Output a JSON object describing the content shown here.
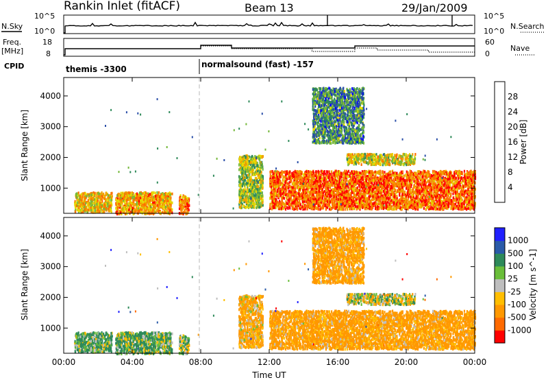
{
  "header": {
    "title": "Rankin Inlet (fitACF)",
    "beam": "Beam 13",
    "date": "29/Jan/2009"
  },
  "top_panels": {
    "nsky_label": "N.Sky",
    "nsearch_label": "N.Search",
    "nsky_ticks": [
      "10^5",
      "10^0"
    ],
    "nsearch_ticks": [
      "10^5",
      "10^0"
    ],
    "freq_label_1": "Freq.",
    "freq_label_2": "[MHz]",
    "freq_ticks": [
      "18",
      "8"
    ],
    "nave_label": "Nave",
    "nave_ticks": [
      "60",
      "0"
    ],
    "cpid_label": "CPID",
    "cpid_1": "themis -3300",
    "cpid_2": "normalsound (fast) -157"
  },
  "colors": {
    "power_scale": [
      "#0000ff",
      "#2a4ea8",
      "#2f8a5a",
      "#74b83a",
      "#e6d900",
      "#f0a000",
      "#ff7000",
      "#ff0000"
    ],
    "velocity_scale": [
      "#ff0000",
      "#ff6a00",
      "#ff9800",
      "#ffbe00",
      "#bebebe",
      "#6abe3a",
      "#2e8a5a",
      "#2a5aa8",
      "#2020ff"
    ]
  },
  "chart_data": [
    {
      "type": "heatmap",
      "name": "power-panel",
      "xlabel": "",
      "ylabel": "Slant Range [km]",
      "y_ticks": [
        "1000",
        "2000",
        "3000",
        "4000"
      ],
      "ylim": [
        180,
        4600
      ],
      "xlim_hours": [
        0,
        24
      ],
      "colorbar_label": "Power [dB]",
      "colorbar_ticks": [
        "28",
        "24",
        "20",
        "16",
        "12",
        "8",
        "4"
      ],
      "cutoff_line_hour": 8,
      "regions": [
        {
          "t0": 0.6,
          "t1": 2.8,
          "r0": 250,
          "r1": 900,
          "v": 20
        },
        {
          "t0": 3.0,
          "t1": 6.3,
          "r0": 200,
          "r1": 900,
          "v": 22
        },
        {
          "t0": 6.7,
          "t1": 7.3,
          "r0": 200,
          "r1": 800,
          "v": 25
        },
        {
          "t0": 10.2,
          "t1": 11.6,
          "r0": 400,
          "r1": 2100,
          "v": 16
        },
        {
          "t0": 12.0,
          "t1": 24.0,
          "r0": 350,
          "r1": 1600,
          "v": 26
        },
        {
          "t0": 16.5,
          "t1": 20.5,
          "r0": 1800,
          "r1": 2150,
          "v": 18
        },
        {
          "t0": 14.5,
          "t1": 17.5,
          "r0": 2500,
          "r1": 4300,
          "v": 10
        }
      ]
    },
    {
      "type": "heatmap",
      "name": "velocity-panel",
      "xlabel": "Time UT",
      "ylabel": "Slant Range [km]",
      "x_ticks": [
        "00:00",
        "04:00",
        "08:00",
        "12:00",
        "16:00",
        "20:00",
        "00:00"
      ],
      "y_ticks": [
        "1000",
        "2000",
        "3000",
        "4000"
      ],
      "ylim": [
        180,
        4600
      ],
      "xlim_hours": [
        0,
        24
      ],
      "colorbar_label": "Velocity [m s^-1]",
      "colorbar_ticks": [
        "1000",
        "500",
        "100",
        "25",
        "-25",
        "-100",
        "-500",
        "-1000"
      ],
      "cutoff_line_hour": 8,
      "regions": [
        {
          "t0": 0.6,
          "t1": 2.8,
          "r0": 250,
          "r1": 900,
          "v": 150
        },
        {
          "t0": 3.0,
          "t1": 6.3,
          "r0": 200,
          "r1": 900,
          "v": 120
        },
        {
          "t0": 6.7,
          "t1": 7.3,
          "r0": 200,
          "r1": 800,
          "v": 60
        },
        {
          "t0": 10.2,
          "t1": 11.6,
          "r0": 400,
          "r1": 2100,
          "v": -150
        },
        {
          "t0": 12.0,
          "t1": 24.0,
          "r0": 350,
          "r1": 1600,
          "v": -200
        },
        {
          "t0": 16.5,
          "t1": 20.5,
          "r0": 1800,
          "r1": 2150,
          "v": 0
        },
        {
          "t0": 14.5,
          "t1": 17.5,
          "r0": 2500,
          "r1": 4300,
          "v": -200
        }
      ]
    }
  ]
}
